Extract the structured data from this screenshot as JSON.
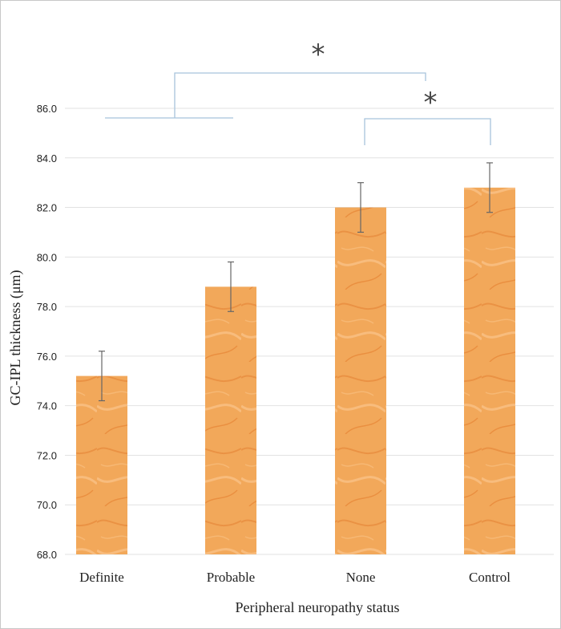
{
  "chart_data": {
    "type": "bar",
    "categories": [
      "Definite",
      "Probable",
      "None",
      "Control"
    ],
    "values": [
      75.2,
      78.8,
      82.0,
      82.8
    ],
    "error": [
      1.0,
      1.0,
      1.0,
      1.0
    ],
    "title": "",
    "xlabel": "Peripheral neuropathy status",
    "ylabel": "GC-IPL thickness (μm)",
    "ylim": [
      68,
      87
    ],
    "yticks": [
      "68.0",
      "70.0",
      "72.0",
      "74.0",
      "76.0",
      "78.0",
      "80.0",
      "82.0",
      "84.0",
      "86.0"
    ],
    "grid": true,
    "legend": "none",
    "bar_color": "#f0a050",
    "significance": [
      {
        "label": "*",
        "from": [
          "Definite",
          "Probable"
        ],
        "to": [
          "None",
          "Control"
        ]
      },
      {
        "label": "*",
        "from": [
          "None"
        ],
        "to": [
          "Control"
        ]
      }
    ]
  }
}
